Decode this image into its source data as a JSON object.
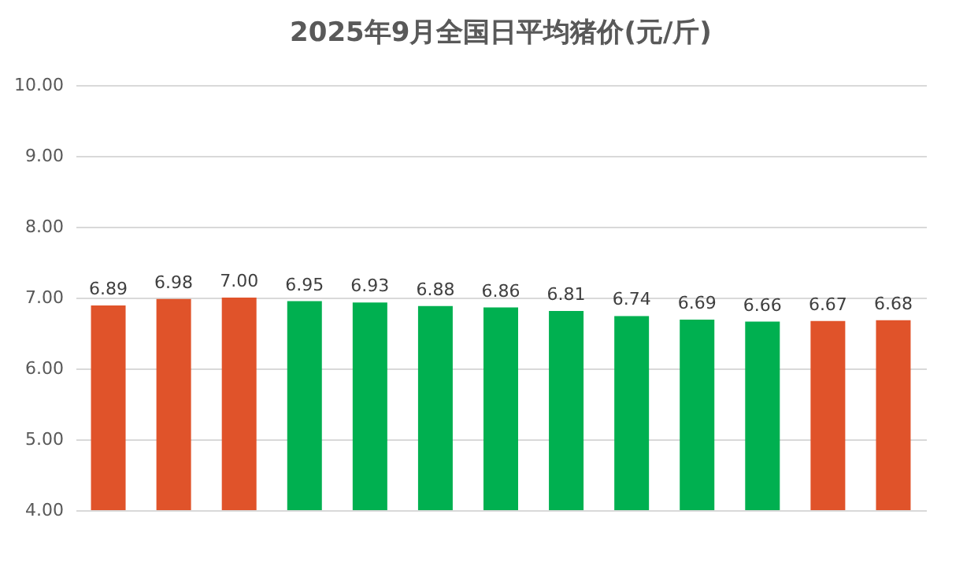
{
  "chart_data": {
    "type": "bar",
    "title": "2025年9月全国日平均猪价(元/斤)",
    "categories": [
      null,
      null,
      null,
      null,
      null,
      null,
      null,
      null,
      null,
      null,
      null,
      null,
      null
    ],
    "values": [
      6.89,
      6.98,
      7.0,
      6.95,
      6.93,
      6.88,
      6.86,
      6.81,
      6.74,
      6.69,
      6.66,
      6.67,
      6.68
    ],
    "colors": [
      "#e0532a",
      "#e0532a",
      "#e0532a",
      "#00b050",
      "#00b050",
      "#00b050",
      "#00b050",
      "#00b050",
      "#00b050",
      "#00b050",
      "#00b050",
      "#e0532a",
      "#e0532a"
    ],
    "value_labels": [
      "6.89",
      "6.98",
      "7.00",
      "6.95",
      "6.93",
      "6.88",
      "6.86",
      "6.81",
      "6.74",
      "6.69",
      "6.66",
      "6.67",
      "6.68"
    ],
    "ylim": [
      4,
      10
    ],
    "yticks": [
      {
        "value": 4,
        "label": "4.00"
      },
      {
        "value": 5,
        "label": "5.00"
      },
      {
        "value": 6,
        "label": "6.00"
      },
      {
        "value": 7,
        "label": "7.00"
      },
      {
        "value": 8,
        "label": "8.00"
      },
      {
        "value": 9,
        "label": "9.00"
      },
      {
        "value": 10,
        "label": "10.00"
      }
    ],
    "grid": "y",
    "tick_labels": "y"
  }
}
